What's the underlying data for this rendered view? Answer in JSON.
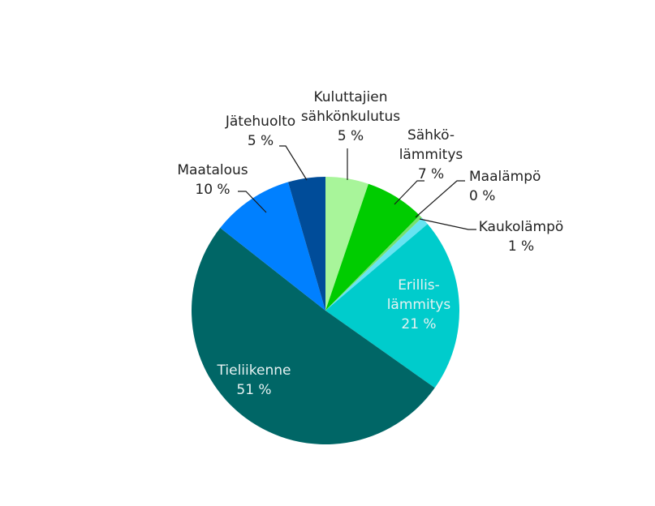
{
  "chart_data": {
    "type": "pie",
    "title": "",
    "slices": [
      {
        "label_lines": [
          "Kuluttajien",
          "sähkönkulutus"
        ],
        "value_label": "5 %",
        "value": 5.2,
        "color": "#a8f59a"
      },
      {
        "label_lines": [
          "Sähkö-",
          "lämmitys"
        ],
        "value_label": "7 %",
        "value": 7.2,
        "color": "#00cc00"
      },
      {
        "label_lines": [
          "Maalämpö"
        ],
        "value_label": "0 %",
        "value": 0.4,
        "color": "#77e070"
      },
      {
        "label_lines": [
          "Kaukolämpö"
        ],
        "value_label": "1 %",
        "value": 1.0,
        "color": "#66e4f2"
      },
      {
        "label_lines": [
          "Erillis-",
          "lämmitys"
        ],
        "value_label": "21 %",
        "value": 21.0,
        "color": "#00cccc"
      },
      {
        "label_lines": [
          "Tieliikenne"
        ],
        "value_label": "51 %",
        "value": 50.8,
        "color": "#006666"
      },
      {
        "label_lines": [
          "Maatalous"
        ],
        "value_label": "10 %",
        "value": 9.9,
        "color": "#0080ff"
      },
      {
        "label_lines": [
          "Jätehuolto"
        ],
        "value_label": "5 %",
        "value": 4.5,
        "color": "#004c99"
      }
    ]
  }
}
